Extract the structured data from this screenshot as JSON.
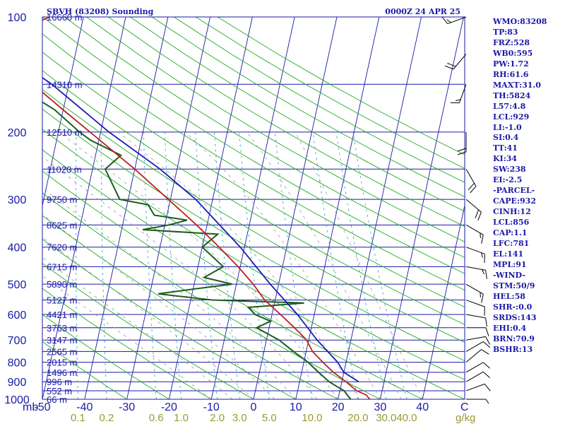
{
  "header": {
    "station": "SBVH (83208) Sounding",
    "time": "0000Z 24 APR 25"
  },
  "indices": [
    "WMO:83208",
    "TP:83",
    "FRZ:528",
    "WB0:595",
    "PW:1.72",
    "RH:61.6",
    "MAXT:31.0",
    "TH:5824",
    "L57:4.8",
    "LCL:929",
    "LI:-1.0",
    "SI:0.4",
    "TT:41",
    "KI:34",
    "SW:238",
    "EI:-2.5",
    "-PARCEL-",
    "CAPE:932",
    "CINH:12",
    "LCL:856",
    "CAP:1.1",
    "LFC:781",
    "EL:141",
    "MPL:91",
    "-WIND-",
    "STM:50/9",
    "HEL:58",
    "SHR-:0.0",
    "SRDS:143",
    "EHI:0.4",
    "BRN:70.9",
    "BSHR:13"
  ],
  "colors": {
    "isobar": "#1a1aa8",
    "isotherm": "#1a1aa8",
    "dry_adiabat": "#22aa22",
    "moist_adiabat": "#999999",
    "mixing_ratio": "#33aacc",
    "temperature": "#bb2020",
    "dewpoint": "#1c5c1c",
    "parcel": "#1a1ab8",
    "mixing_labels": "#999933",
    "text": "#1a1aa8"
  },
  "chart_data": {
    "type": "skew-t log-p sounding",
    "x_axis": {
      "label": "C",
      "ticks": [
        "-50",
        "-40",
        "-30",
        "-20",
        "-10",
        "0",
        "10",
        "20",
        "30",
        "40"
      ],
      "range_c": [
        -50,
        50
      ]
    },
    "y_axis": {
      "label": "mb",
      "scale": "log",
      "range_mb": [
        1000,
        100
      ],
      "ticks": [
        "100",
        "200",
        "300",
        "400",
        "500",
        "600",
        "700",
        "800",
        "900",
        "1000"
      ]
    },
    "mixing_ratio": {
      "unit": "g/kg",
      "labels": [
        "0.1",
        "0.2",
        "0.6",
        "1.0",
        "2.0",
        "3.0",
        "5.0",
        "10.0",
        "20.0",
        "30.0",
        "40.0"
      ]
    },
    "heights": [
      {
        "p": 100,
        "label": "16660 m"
      },
      {
        "p": 150,
        "label": "14310 m"
      },
      {
        "p": 200,
        "label": "12510 m"
      },
      {
        "p": 250,
        "label": "11020 m"
      },
      {
        "p": 300,
        "label": "9750 m"
      },
      {
        "p": 350,
        "label": "8625 m"
      },
      {
        "p": 400,
        "label": "7620 m"
      },
      {
        "p": 450,
        "label": "6715 m"
      },
      {
        "p": 500,
        "label": "5890 m"
      },
      {
        "p": 550,
        "label": "5127 m"
      },
      {
        "p": 600,
        "label": "4421 m"
      },
      {
        "p": 650,
        "label": "3763 m"
      },
      {
        "p": 700,
        "label": "3147 m"
      },
      {
        "p": 750,
        "label": "2565 m"
      },
      {
        "p": 800,
        "label": "2015 m"
      },
      {
        "p": 850,
        "label": "1496 m"
      },
      {
        "p": 900,
        "label": "996 m"
      },
      {
        "p": 950,
        "label": "552 m"
      },
      {
        "p": 1000,
        "label": "66 m"
      }
    ],
    "temperature": [
      {
        "p": 1000,
        "t": 27.5
      },
      {
        "p": 975,
        "t": 26.5
      },
      {
        "p": 950,
        "t": 24.0
      },
      {
        "p": 925,
        "t": 22.5
      },
      {
        "p": 900,
        "t": 21.0
      },
      {
        "p": 850,
        "t": 17.5
      },
      {
        "p": 800,
        "t": 14.5
      },
      {
        "p": 750,
        "t": 11.5
      },
      {
        "p": 700,
        "t": 9.5
      },
      {
        "p": 650,
        "t": 6.0
      },
      {
        "p": 600,
        "t": 2.0
      },
      {
        "p": 550,
        "t": -2.5
      },
      {
        "p": 500,
        "t": -6.0
      },
      {
        "p": 450,
        "t": -10.5
      },
      {
        "p": 400,
        "t": -16.0
      },
      {
        "p": 350,
        "t": -22.5
      },
      {
        "p": 300,
        "t": -30.5
      },
      {
        "p": 250,
        "t": -40.0
      },
      {
        "p": 200,
        "t": -52.5
      },
      {
        "p": 175,
        "t": -60.0
      },
      {
        "p": 150,
        "t": -68.5
      },
      {
        "p": 125,
        "t": -78.5
      },
      {
        "p": 115,
        "t": -81.0
      },
      {
        "p": 105,
        "t": -72.0
      },
      {
        "p": 100,
        "t": -68.0
      }
    ],
    "dewpoint": [
      {
        "p": 1000,
        "td": 23.0
      },
      {
        "p": 975,
        "td": 22.0
      },
      {
        "p": 950,
        "td": 21.0
      },
      {
        "p": 925,
        "td": 19.0
      },
      {
        "p": 900,
        "td": 17.0
      },
      {
        "p": 850,
        "td": 14.0
      },
      {
        "p": 800,
        "td": 11.0
      },
      {
        "p": 750,
        "td": 7.0
      },
      {
        "p": 700,
        "td": 3.0
      },
      {
        "p": 650,
        "td": -3.0
      },
      {
        "p": 625,
        "td": 0.0
      },
      {
        "p": 600,
        "td": -4.0
      },
      {
        "p": 575,
        "td": -6.0
      },
      {
        "p": 560,
        "td": 7.0
      },
      {
        "p": 550,
        "td": -15.0
      },
      {
        "p": 530,
        "td": -28.0
      },
      {
        "p": 515,
        "td": -20.0
      },
      {
        "p": 500,
        "td": -11.0
      },
      {
        "p": 480,
        "td": -18.0
      },
      {
        "p": 450,
        "td": -14.0
      },
      {
        "p": 400,
        "td": -20.0
      },
      {
        "p": 370,
        "td": -17.0
      },
      {
        "p": 360,
        "td": -35.0
      },
      {
        "p": 350,
        "td": -29.0
      },
      {
        "p": 340,
        "td": -25.0
      },
      {
        "p": 330,
        "td": -33.0
      },
      {
        "p": 310,
        "td": -35.0
      },
      {
        "p": 300,
        "td": -42.0
      },
      {
        "p": 250,
        "td": -47.0
      },
      {
        "p": 230,
        "td": -44.0
      },
      {
        "p": 210,
        "td": -52.0
      },
      {
        "p": 200,
        "td": -55.0
      },
      {
        "p": 175,
        "td": -62.0
      },
      {
        "p": 150,
        "td": -73.0
      },
      {
        "p": 140,
        "td": -81.0
      },
      {
        "p": 120,
        "td": -80.0
      },
      {
        "p": 100,
        "td": -80.0
      }
    ],
    "parcel": [
      {
        "p": 900,
        "t": 24.0
      },
      {
        "p": 850,
        "t": 20.0
      },
      {
        "p": 800,
        "t": 18.0
      },
      {
        "p": 700,
        "t": 12.0
      },
      {
        "p": 600,
        "t": 6.0
      },
      {
        "p": 500,
        "t": -2.0
      },
      {
        "p": 400,
        "t": -11.0
      },
      {
        "p": 300,
        "t": -24.0
      },
      {
        "p": 250,
        "t": -34.0
      },
      {
        "p": 200,
        "t": -48.0
      },
      {
        "p": 150,
        "t": -64.0
      },
      {
        "p": 125,
        "t": -76.0
      }
    ],
    "winds": [
      {
        "p": 1000,
        "dir": 90,
        "spd": 5
      },
      {
        "p": 950,
        "dir": 70,
        "spd": 10
      },
      {
        "p": 900,
        "dir": 60,
        "spd": 10
      },
      {
        "p": 850,
        "dir": 60,
        "spd": 10
      },
      {
        "p": 800,
        "dir": 50,
        "spd": 10
      },
      {
        "p": 750,
        "dir": 60,
        "spd": 10
      },
      {
        "p": 700,
        "dir": 80,
        "spd": 10
      },
      {
        "p": 650,
        "dir": 90,
        "spd": 10
      },
      {
        "p": 600,
        "dir": 100,
        "spd": 10
      },
      {
        "p": 550,
        "dir": 110,
        "spd": 10
      },
      {
        "p": 500,
        "dir": 120,
        "spd": 15
      },
      {
        "p": 450,
        "dir": 100,
        "spd": 15
      },
      {
        "p": 400,
        "dir": 110,
        "spd": 15
      },
      {
        "p": 350,
        "dir": 120,
        "spd": 15
      },
      {
        "p": 300,
        "dir": 130,
        "spd": 20
      },
      {
        "p": 250,
        "dir": 150,
        "spd": 20
      },
      {
        "p": 200,
        "dir": 180,
        "spd": 20
      },
      {
        "p": 150,
        "dir": 200,
        "spd": 15
      },
      {
        "p": 125,
        "dir": 220,
        "spd": 20
      },
      {
        "p": 100,
        "dir": 250,
        "spd": 15
      }
    ]
  }
}
